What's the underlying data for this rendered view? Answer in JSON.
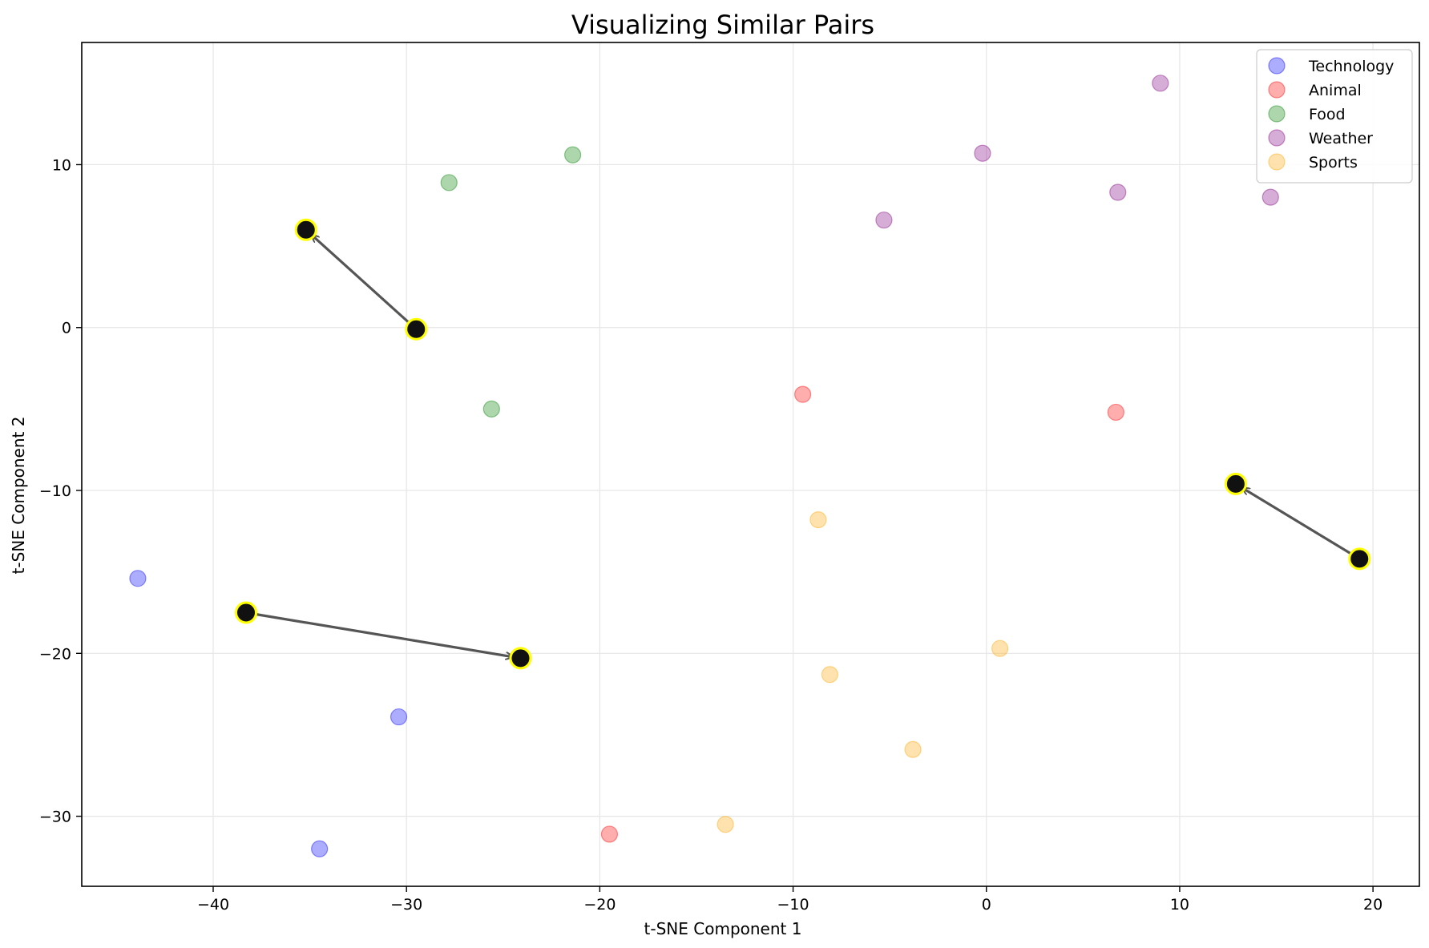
{
  "chart_data": {
    "type": "scatter",
    "title": "Visualizing Similar Pairs",
    "xlabel": "t-SNE Component 1",
    "ylabel": "t-SNE Component 2",
    "xlim": [
      -46.8,
      22.4
    ],
    "ylim": [
      -34.3,
      17.5
    ],
    "xticks": [
      -40,
      -30,
      -20,
      -10,
      0,
      10,
      20
    ],
    "yticks": [
      -30,
      -20,
      -10,
      0,
      10
    ],
    "grid": true,
    "legend_position": "top-right",
    "series": [
      {
        "name": "Technology",
        "color": "#0000ff",
        "points": [
          {
            "x": -43.9,
            "y": -15.4
          },
          {
            "x": -30.4,
            "y": -23.9
          },
          {
            "x": -34.5,
            "y": -32.0
          }
        ]
      },
      {
        "name": "Animal",
        "color": "#ff0000",
        "points": [
          {
            "x": -9.5,
            "y": -4.1
          },
          {
            "x": 6.7,
            "y": -5.2
          },
          {
            "x": -19.5,
            "y": -31.1
          }
        ]
      },
      {
        "name": "Food",
        "color": "#008000",
        "points": [
          {
            "x": -27.8,
            "y": 8.9
          },
          {
            "x": -21.4,
            "y": 10.6
          },
          {
            "x": -25.6,
            "y": -5.0
          }
        ]
      },
      {
        "name": "Weather",
        "color": "#800080",
        "points": [
          {
            "x": -0.2,
            "y": 10.7
          },
          {
            "x": -5.3,
            "y": 6.6
          },
          {
            "x": 6.8,
            "y": 8.3
          },
          {
            "x": 9.0,
            "y": 15.0
          },
          {
            "x": 14.7,
            "y": 8.0
          }
        ]
      },
      {
        "name": "Sports",
        "color": "#ffa500",
        "points": [
          {
            "x": -8.7,
            "y": -11.8
          },
          {
            "x": 0.7,
            "y": -19.7
          },
          {
            "x": -8.1,
            "y": -21.3
          },
          {
            "x": -3.8,
            "y": -25.9
          },
          {
            "x": -13.5,
            "y": -30.5
          }
        ]
      }
    ],
    "highlighted_points": [
      {
        "x": -35.2,
        "y": 6.0
      },
      {
        "x": -29.5,
        "y": -0.1
      },
      {
        "x": -38.3,
        "y": -17.5
      },
      {
        "x": -24.1,
        "y": -20.3
      },
      {
        "x": 12.9,
        "y": -9.6
      },
      {
        "x": 19.3,
        "y": -14.2
      }
    ],
    "pair_arrows": [
      {
        "from": {
          "x": -29.5,
          "y": -0.1
        },
        "to": {
          "x": -35.2,
          "y": 6.0
        }
      },
      {
        "from": {
          "x": -38.3,
          "y": -17.5
        },
        "to": {
          "x": -24.1,
          "y": -20.3
        }
      },
      {
        "from": {
          "x": 19.3,
          "y": -14.2
        },
        "to": {
          "x": 12.9,
          "y": -9.6
        }
      }
    ],
    "style": {
      "highlight_fill": "#111111",
      "highlight_edge": "#ffff00",
      "arrow_color": "#555555",
      "grid_color": "#e6e6e6"
    }
  }
}
